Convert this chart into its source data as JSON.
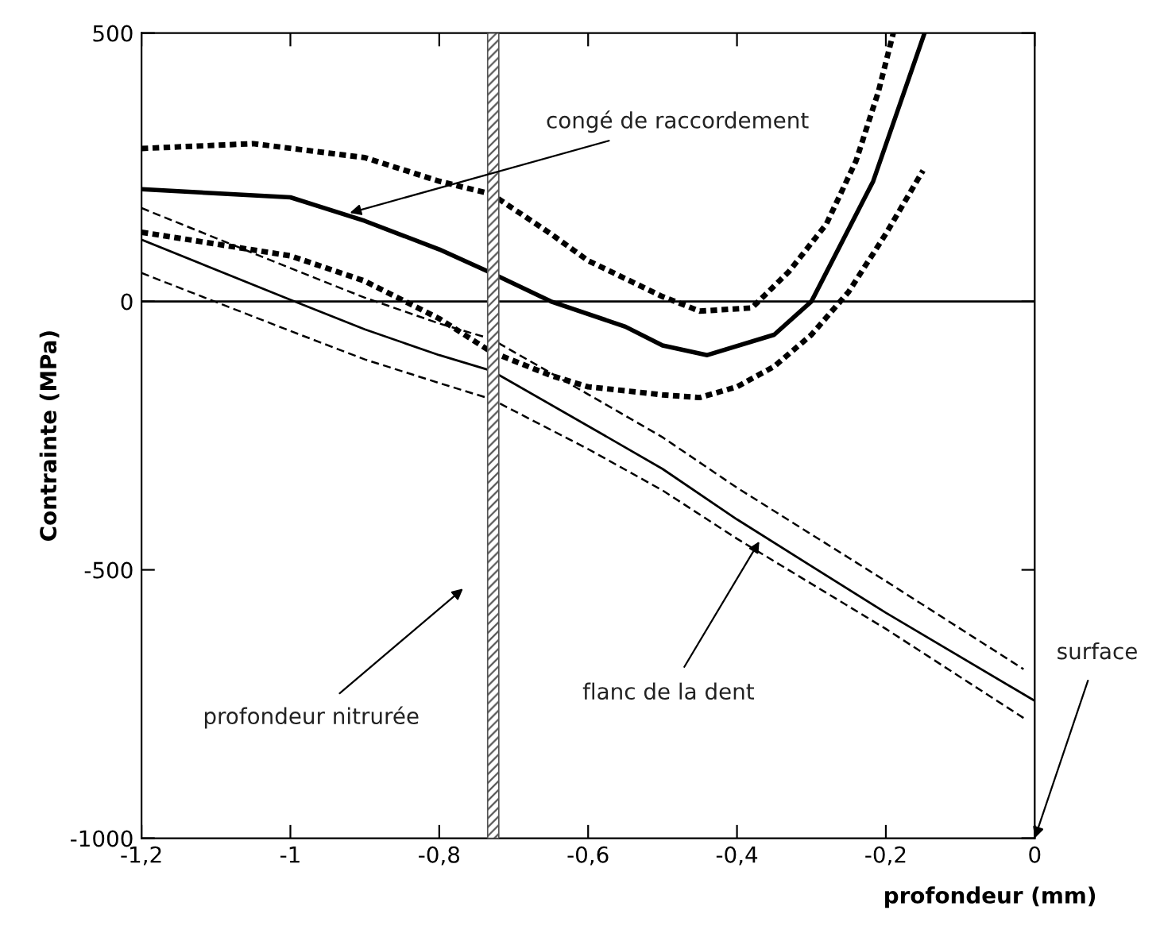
{
  "chart_data": {
    "type": "line",
    "xlabel": "profondeur (mm)",
    "ylabel": "Contrainte (MPa)",
    "xlim": [
      -1.2,
      0
    ],
    "ylim": [
      -1000,
      500
    ],
    "xticks": [
      {
        "value": -1.2,
        "label": "-1,2"
      },
      {
        "value": -1,
        "label": "-1"
      },
      {
        "value": -0.8,
        "label": "-0,8"
      },
      {
        "value": -0.6,
        "label": "-0,6"
      },
      {
        "value": -0.4,
        "label": "-0,4"
      },
      {
        "value": -0.2,
        "label": "-0,2"
      },
      {
        "value": 0,
        "label": "0"
      }
    ],
    "yticks": [
      -1000,
      -500,
      0,
      500
    ],
    "grid": false,
    "marker": "none",
    "series": [
      {
        "color": "#000000",
        "line_style": "solid",
        "x": [
          -1.2,
          -1.0,
          -0.9,
          -0.8,
          -0.73,
          -0.65,
          -0.55,
          -0.5,
          -0.44,
          -0.35,
          -0.3,
          -0.217,
          -0.148
        ],
        "values": [
          209,
          194,
          150,
          97,
          53,
          0,
          -47,
          -82,
          -100,
          -62,
          0,
          224,
          500
        ]
      },
      {
        "color": "#000000",
        "line_style": "dotted",
        "x": [
          -1.2,
          -1.05,
          -0.9,
          -0.8,
          -0.73,
          -0.65,
          -0.6,
          -0.5,
          -0.45,
          -0.38,
          -0.33,
          -0.28,
          -0.24,
          -0.21,
          -0.19
        ],
        "values": [
          285,
          294,
          268,
          224,
          200,
          126,
          76,
          9,
          -18,
          -12,
          56,
          144,
          262,
          391,
          500
        ]
      },
      {
        "color": "#000000",
        "line_style": "dotted",
        "x": [
          -1.2,
          -1.0,
          -0.9,
          -0.8,
          -0.73,
          -0.65,
          -0.6,
          -0.5,
          -0.45,
          -0.4,
          -0.35,
          -0.3,
          -0.25,
          -0.2,
          -0.15
        ],
        "values": [
          129,
          85,
          38,
          -32,
          -94,
          -138,
          -159,
          -174,
          -179,
          -159,
          -121,
          -62,
          18,
          126,
          244
        ]
      },
      {
        "color": "#000000",
        "line_style": "solid",
        "x": [
          -1.2,
          -1.0,
          -0.9,
          -0.8,
          -0.73,
          -0.6,
          -0.5,
          -0.4,
          -0.2,
          0
        ],
        "values": [
          115,
          3,
          -52,
          -100,
          -129,
          -232,
          -312,
          -406,
          -580,
          -744
        ]
      },
      {
        "color": "#000000",
        "line_style": "dashed",
        "x": [
          -1.2,
          -1.0,
          -0.9,
          -0.8,
          -0.73,
          -0.6,
          -0.5,
          -0.4,
          -0.2,
          -0.015
        ],
        "values": [
          174,
          62,
          7,
          -41,
          -70,
          -173,
          -253,
          -347,
          -521,
          -685
        ]
      },
      {
        "color": "#000000",
        "line_style": "dashed",
        "x": [
          -1.2,
          -1.0,
          -0.9,
          -0.8,
          -0.73,
          -0.6,
          -0.5,
          -0.4,
          -0.2,
          -0.015
        ],
        "values": [
          53,
          -55,
          -108,
          -152,
          -182,
          -275,
          -352,
          -442,
          -610,
          -776
        ]
      }
    ],
    "ref_lines": [
      {
        "axis": "y",
        "value": 0,
        "color": "#000000",
        "line_style": "solid"
      }
    ],
    "bands": [
      {
        "axis": "x",
        "from": -0.735,
        "to": -0.72,
        "color": "#555555"
      }
    ],
    "annotations": [
      {
        "text": "congé de raccordement",
        "x": -0.92,
        "y": 165
      },
      {
        "text": "flanc de la dent",
        "x": -0.37,
        "y": -447
      },
      "profondeur nitrurée",
      "surface"
    ]
  }
}
